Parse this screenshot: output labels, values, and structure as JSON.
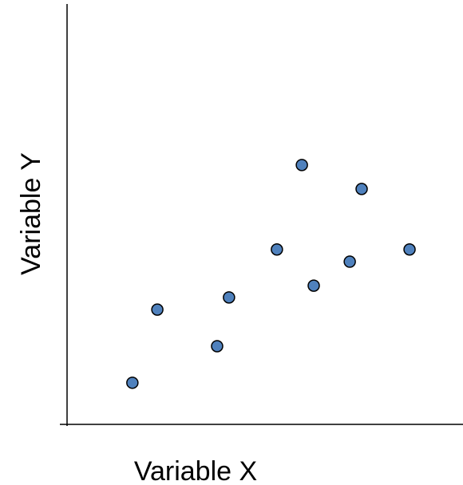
{
  "chart_data": {
    "type": "scatter",
    "x_label": "Variable X",
    "y_label": "Variable Y",
    "series": [
      {
        "color": "#4f81bd",
        "x": [
          16.5,
          22.8,
          37.9,
          40.9,
          53.0,
          59.3,
          62.3,
          71.4,
          74.4,
          86.5
        ],
        "values": [
          9.9,
          27.3,
          18.6,
          30.2,
          41.6,
          61.7,
          33.0,
          38.7,
          56.0,
          41.6
        ]
      }
    ],
    "xlim": [
      0,
      100
    ],
    "ylim": [
      0,
      100
    ]
  }
}
